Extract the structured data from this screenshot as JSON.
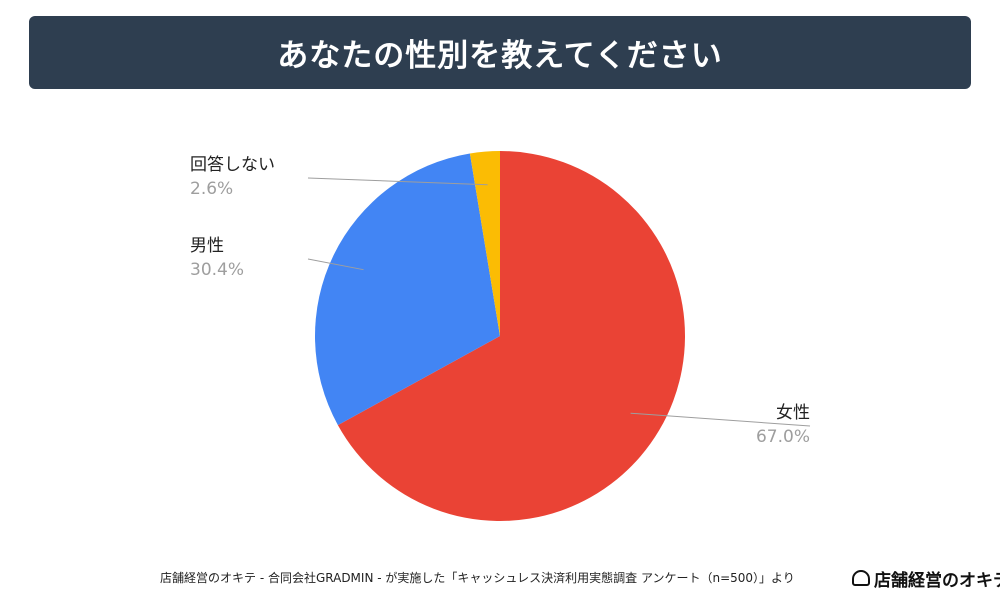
{
  "title": "あなたの性別を教えてください",
  "footer": "店舗経営のオキテ - 合同会社GRADMIN - が実施した「キャッシュレス決済利用実態調査 アンケート（n=500）」より",
  "logo": {
    "text": "店舗経営のオキテ"
  },
  "colors": {
    "title_bg": "#2e3e50",
    "female": "#ea4335",
    "male": "#4285f4",
    "no_answer": "#fbbc04",
    "label_value": "#9e9e9e"
  },
  "chart_data": {
    "type": "pie",
    "slices": [
      {
        "name": "女性",
        "value": 67.0,
        "label": "67.0%",
        "color": "#ea4335"
      },
      {
        "name": "男性",
        "value": 30.4,
        "label": "30.4%",
        "color": "#4285f4"
      },
      {
        "name": "回答しない",
        "value": 2.6,
        "label": "2.6%",
        "color": "#fbbc04"
      }
    ]
  }
}
